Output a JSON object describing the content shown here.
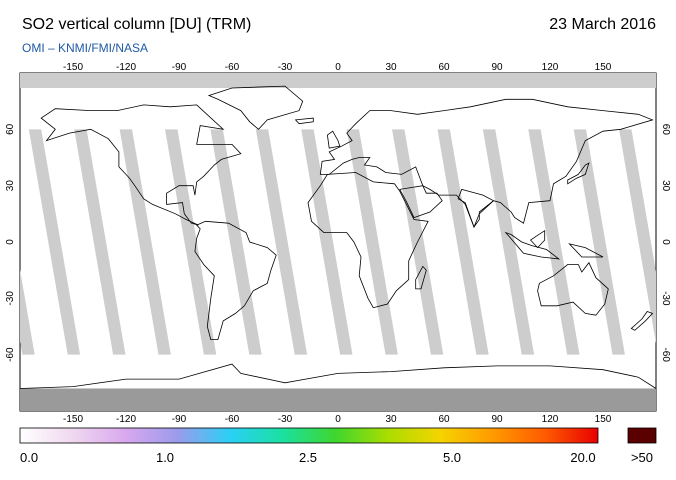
{
  "header": {
    "title": "SO2 vertical column [DU] (TRM)",
    "date": "23 March 2016",
    "credit": "OMI  –  KNMI/FMI/NASA"
  },
  "map": {
    "projection": "equirectangular",
    "lon_range": [
      -180,
      180
    ],
    "lat_range": [
      -90,
      90
    ],
    "lon_ticks": [
      -150,
      -120,
      -90,
      -60,
      -30,
      0,
      30,
      60,
      90,
      120,
      150
    ],
    "lat_ticks": [
      60,
      30,
      0,
      -30,
      -60
    ],
    "colors": {
      "land_gap": "#9a9a9a",
      "swath_gap": "#cdcdcd",
      "ocean": "#ffffff",
      "coast": "#000000"
    }
  },
  "colorbar": {
    "labels": [
      "0.0",
      "1.0",
      "2.5",
      "5.0",
      "20.0"
    ],
    "overflow_label": ">50",
    "overflow_color": "#5a0000",
    "stops": [
      "#ffffff",
      "#f0d8f0",
      "#d9a8ee",
      "#9b9bec",
      "#2ad0f5",
      "#1be0a0",
      "#3ed62e",
      "#aadd00",
      "#f5d400",
      "#ff9a00",
      "#ff5a00",
      "#e80000"
    ]
  }
}
